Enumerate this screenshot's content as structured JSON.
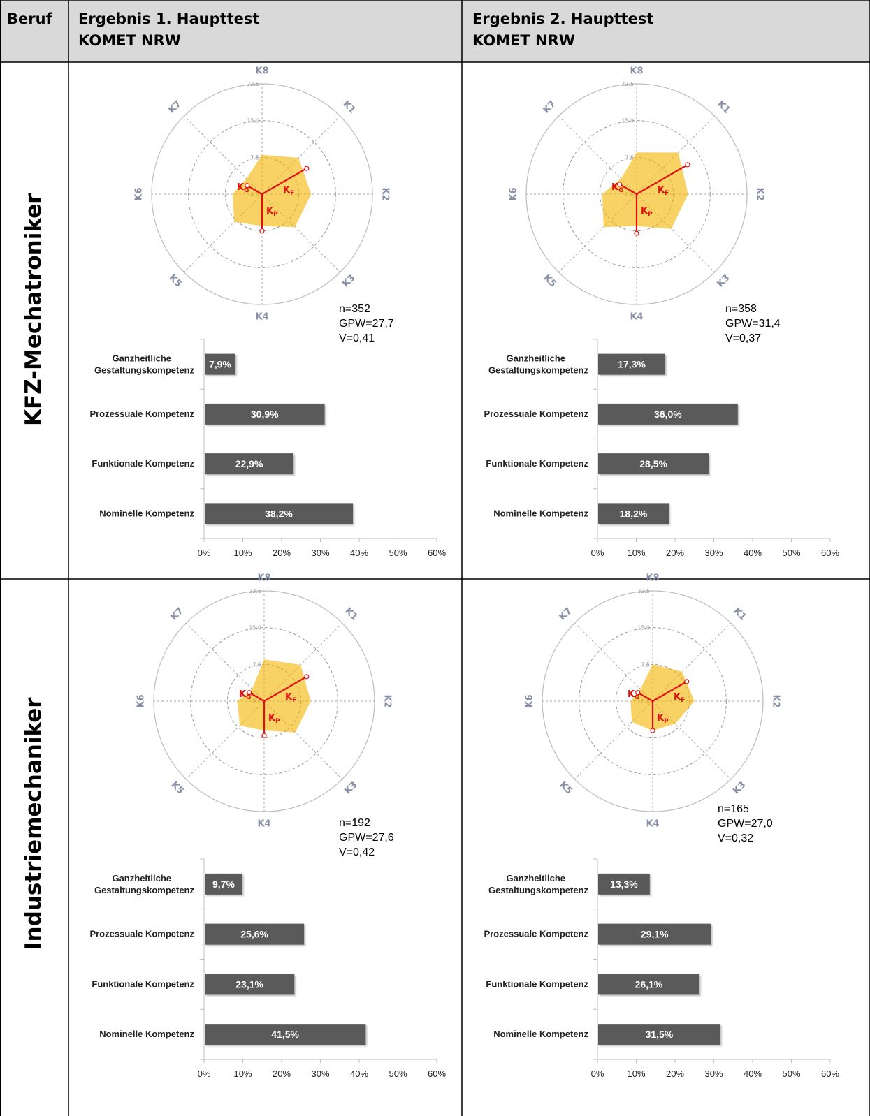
{
  "header": {
    "col1": "Beruf",
    "col2_line1": "Ergebnis 1. Haupttest",
    "col2_line2": "KOMET NRW",
    "col3_line1": "Ergebnis 2. Haupttest",
    "col3_line2": "KOMET NRW"
  },
  "rows": [
    {
      "label": "KFZ-Mechatroniker"
    },
    {
      "label": "Industriemechaniker"
    }
  ],
  "colors": {
    "radar_fill": "#f5b400",
    "radar_fill_opacity": "0.6",
    "competence_lines": "#e01010",
    "bar": "#5a5a5a",
    "axis_labels": "#888fa6"
  },
  "radar_axes": [
    "K1",
    "K2",
    "K3",
    "K4",
    "K5",
    "K6",
    "K7",
    "K8"
  ],
  "radar_ticks": [
    "0.0",
    "7.5",
    "15.0",
    "22.5"
  ],
  "radar_competence_labels": {
    "kf": "K",
    "kf_sub": "F",
    "kp": "K",
    "kp_sub": "P",
    "kg": "K",
    "kg_sub": "G"
  },
  "bar_categories": [
    "Ganzheitliche Gestaltungskompetenz",
    "Prozessuale Kompetenz",
    "Funktionale Kompetenz",
    "Nominelle Kompetenz"
  ],
  "x_ticks": [
    "0%",
    "10%",
    "20%",
    "30%",
    "40%",
    "50%",
    "60%"
  ],
  "chart_data": [
    {
      "type": "radar",
      "profession": "KFZ-Mechatroniker",
      "test": "Ergebnis 1. Haupttest",
      "axes": [
        "K1",
        "K2",
        "K3",
        "K4",
        "K5",
        "K6",
        "K7",
        "K8"
      ],
      "rmax": 22.5,
      "values": [
        10.5,
        10.0,
        9.5,
        6.5,
        8.0,
        6.0,
        4.5,
        8.0
      ],
      "competence_lines": {
        "KF": 10.5,
        "KP": 7.5,
        "KG": 3.5
      },
      "stats": {
        "n": "n=352",
        "gpw": "GPW=27,7",
        "v": "V=0,41"
      }
    },
    {
      "type": "bar",
      "profession": "KFZ-Mechatroniker",
      "test": "Ergebnis 1. Haupttest",
      "categories": [
        "Ganzheitliche Gestaltungskompetenz",
        "Prozessuale Kompetenz",
        "Funktionale Kompetenz",
        "Nominelle Kompetenz"
      ],
      "values": [
        7.9,
        30.9,
        22.9,
        38.2
      ],
      "labels": [
        "7,9%",
        "30,9%",
        "22,9%",
        "38,2%"
      ],
      "xlim": [
        0,
        60
      ]
    },
    {
      "type": "radar",
      "profession": "KFZ-Mechatroniker",
      "test": "Ergebnis 2. Haupttest",
      "axes": [
        "K1",
        "K2",
        "K3",
        "K4",
        "K5",
        "K6",
        "K7",
        "K8"
      ],
      "rmax": 22.5,
      "values": [
        12.0,
        10.5,
        10.0,
        6.5,
        9.5,
        7.0,
        4.5,
        8.5
      ],
      "competence_lines": {
        "KF": 12.0,
        "KP": 8.0,
        "KG": 4.0
      },
      "stats": {
        "n": "n=358",
        "gpw": "GPW=31,4",
        "v": "V=0,37"
      }
    },
    {
      "type": "bar",
      "profession": "KFZ-Mechatroniker",
      "test": "Ergebnis 2. Haupttest",
      "categories": [
        "Ganzheitliche Gestaltungskompetenz",
        "Prozessuale Kompetenz",
        "Funktionale Kompetenz",
        "Nominelle Kompetenz"
      ],
      "values": [
        17.3,
        36.0,
        28.5,
        18.2
      ],
      "labels": [
        "17,3%",
        "36,0%",
        "28,5%",
        "18,2%"
      ],
      "xlim": [
        0,
        60
      ]
    },
    {
      "type": "radar",
      "profession": "Industriemechaniker",
      "test": "Ergebnis 1. Haupttest",
      "axes": [
        "K1",
        "K2",
        "K3",
        "K4",
        "K5",
        "K6",
        "K7",
        "K8"
      ],
      "rmax": 22.5,
      "values": [
        10.5,
        9.5,
        9.0,
        6.0,
        7.0,
        5.5,
        3.5,
        8.5
      ],
      "competence_lines": {
        "KF": 10.0,
        "KP": 7.0,
        "KG": 3.5
      },
      "stats": {
        "n": "n=192",
        "gpw": "GPW=27,6",
        "v": "V=0,42"
      }
    },
    {
      "type": "bar",
      "profession": "Industriemechaniker",
      "test": "Ergebnis 1. Haupttest",
      "categories": [
        "Ganzheitliche Gestaltungskompetenz",
        "Prozessuale Kompetenz",
        "Funktionale Kompetenz",
        "Nominelle Kompetenz"
      ],
      "values": [
        9.7,
        25.6,
        23.1,
        41.5
      ],
      "labels": [
        "9,7%",
        "25,6%",
        "23,1%",
        "41,5%"
      ],
      "xlim": [
        0,
        60
      ]
    },
    {
      "type": "radar",
      "profession": "Industriemechaniker",
      "test": "Ergebnis 2. Haupttest",
      "axes": [
        "K1",
        "K2",
        "K3",
        "K4",
        "K5",
        "K6",
        "K7",
        "K8"
      ],
      "rmax": 22.5,
      "values": [
        8.5,
        8.5,
        6.5,
        6.0,
        6.0,
        4.5,
        3.5,
        7.5
      ],
      "competence_lines": {
        "KF": 8.0,
        "KP": 6.0,
        "KG": 3.5
      },
      "stats": {
        "n": "n=165",
        "gpw": "GPW=27,0",
        "v": "V=0,32"
      }
    },
    {
      "type": "bar",
      "profession": "Industriemechaniker",
      "test": "Ergebnis 2. Haupttest",
      "categories": [
        "Ganzheitliche Gestaltungskompetenz",
        "Prozessuale Kompetenz",
        "Funktionale Kompetenz",
        "Nominelle Kompetenz"
      ],
      "values": [
        13.3,
        29.1,
        26.1,
        31.5
      ],
      "labels": [
        "13,3%",
        "29,1%",
        "26,1%",
        "31,5%"
      ],
      "xlim": [
        0,
        60
      ]
    }
  ]
}
